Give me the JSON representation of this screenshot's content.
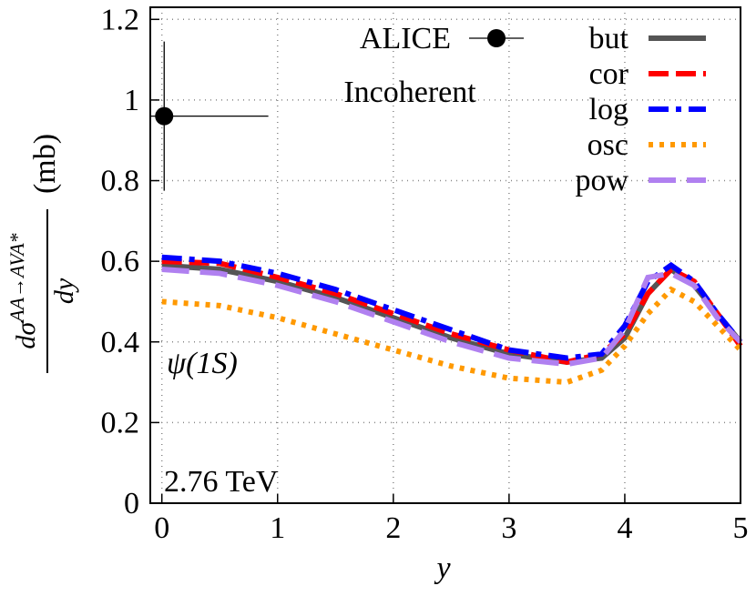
{
  "chart_data": {
    "type": "line",
    "xlabel": "y",
    "ylabel_numerator": "dσ",
    "ylabel_superscript": "AA→AVA*",
    "ylabel_denominator": "dy",
    "ylabel_unit": "(mb)",
    "annotations": {
      "experiment": "ALICE",
      "process": "Incoherent",
      "state": "ψ(1S)",
      "energy": "2.76 TeV"
    },
    "x": [
      0,
      0.5,
      1,
      1.5,
      2,
      2.5,
      3,
      3.5,
      3.8,
      4,
      4.2,
      4.4,
      4.6,
      4.8,
      5
    ],
    "series": [
      {
        "name": "but",
        "color": "#555555",
        "dash": "solid",
        "values": [
          0.59,
          0.58,
          0.55,
          0.51,
          0.46,
          0.41,
          0.37,
          0.35,
          0.36,
          0.41,
          0.52,
          0.58,
          0.54,
          0.47,
          0.4
        ]
      },
      {
        "name": "cor",
        "color": "#ff0000",
        "dash": "dashed",
        "values": [
          0.6,
          0.595,
          0.56,
          0.52,
          0.47,
          0.42,
          0.38,
          0.35,
          0.37,
          0.42,
          0.52,
          0.58,
          0.55,
          0.47,
          0.39
        ]
      },
      {
        "name": "log",
        "color": "#0000ff",
        "dash": "dashdot",
        "values": [
          0.61,
          0.6,
          0.57,
          0.53,
          0.48,
          0.43,
          0.38,
          0.36,
          0.37,
          0.44,
          0.55,
          0.59,
          0.55,
          0.47,
          0.4
        ]
      },
      {
        "name": "osc",
        "color": "#ff9900",
        "dash": "dotted",
        "values": [
          0.5,
          0.49,
          0.46,
          0.42,
          0.38,
          0.34,
          0.31,
          0.3,
          0.33,
          0.39,
          0.47,
          0.53,
          0.5,
          0.44,
          0.38
        ]
      },
      {
        "name": "pow",
        "color": "#b080f0",
        "dash": "longdash",
        "values": [
          0.58,
          0.57,
          0.54,
          0.5,
          0.45,
          0.4,
          0.36,
          0.345,
          0.36,
          0.43,
          0.56,
          0.57,
          0.54,
          0.46,
          0.4
        ]
      }
    ],
    "data_point": {
      "name": "ALICE",
      "x": 0.02,
      "value": 0.96,
      "yerr": 0.185,
      "xerr": 0.9,
      "color": "#000000"
    },
    "xlim": [
      -0.1,
      5
    ],
    "ylim": [
      0,
      1.23
    ],
    "xticks": [
      0,
      1,
      2,
      3,
      4,
      5
    ],
    "yticks": [
      0,
      0.2,
      0.4,
      0.6,
      0.8,
      1,
      1.2
    ],
    "grid": true,
    "legend": "upper right"
  }
}
